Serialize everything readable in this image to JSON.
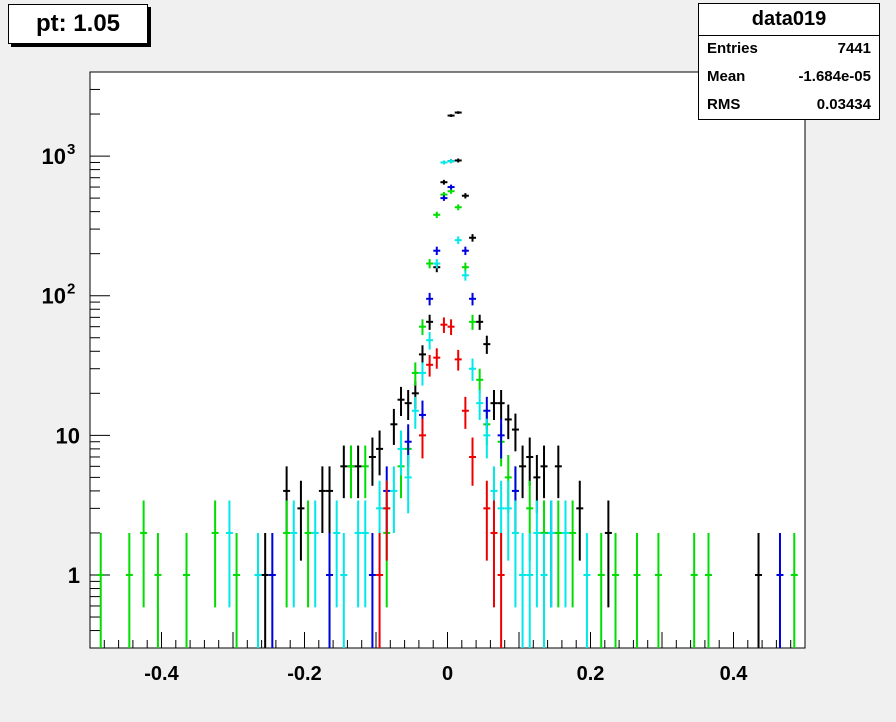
{
  "title": "pt: 1.05",
  "stats": {
    "name": "data019",
    "rows": [
      {
        "label": "Entries",
        "value": "7441"
      },
      {
        "label": "Mean",
        "value": "-1.684e-05"
      },
      {
        "label": "RMS",
        "value": "0.03434"
      }
    ]
  },
  "chart_data": {
    "type": "scatter",
    "y_scale": "log",
    "xlim": [
      -0.5,
      0.5
    ],
    "ylim": [
      0.3,
      4000
    ],
    "x_ticks": [
      {
        "value": -0.4,
        "label": "-0.4"
      },
      {
        "value": -0.2,
        "label": "-0.2"
      },
      {
        "value": 0,
        "label": "0"
      },
      {
        "value": 0.2,
        "label": "0.2"
      },
      {
        "value": 0.4,
        "label": "0.4"
      }
    ],
    "y_ticks": [
      {
        "value": 1,
        "label": "1"
      },
      {
        "value": 10,
        "label": "10"
      },
      {
        "value": 100,
        "label": "10",
        "exp": "2"
      },
      {
        "value": 1000,
        "label": "10",
        "exp": "3"
      }
    ],
    "series": [
      {
        "color": "#000000",
        "points": [
          [
            -0.255,
            1
          ],
          [
            -0.225,
            4
          ],
          [
            -0.205,
            3
          ],
          [
            -0.175,
            4
          ],
          [
            -0.165,
            4
          ],
          [
            -0.145,
            6
          ],
          [
            -0.135,
            6
          ],
          [
            -0.125,
            6
          ],
          [
            -0.105,
            7
          ],
          [
            -0.095,
            8
          ],
          [
            -0.075,
            12
          ],
          [
            -0.065,
            18
          ],
          [
            -0.055,
            17
          ],
          [
            -0.045,
            20
          ],
          [
            -0.035,
            38
          ],
          [
            -0.025,
            65
          ],
          [
            -0.015,
            160
          ],
          [
            -0.005,
            650
          ],
          [
            0.005,
            1950
          ],
          [
            0.005,
            920
          ],
          [
            0.015,
            2050
          ],
          [
            0.015,
            930
          ],
          [
            0.025,
            520
          ],
          [
            0.035,
            260
          ],
          [
            0.045,
            65
          ],
          [
            0.055,
            45
          ],
          [
            0.065,
            17
          ],
          [
            0.075,
            17
          ],
          [
            0.085,
            13
          ],
          [
            0.095,
            11
          ],
          [
            0.105,
            6
          ],
          [
            0.115,
            7
          ],
          [
            0.125,
            5
          ],
          [
            0.135,
            6
          ],
          [
            0.155,
            6
          ],
          [
            0.185,
            3
          ],
          [
            0.225,
            2
          ],
          [
            0.435,
            1
          ]
        ]
      },
      {
        "color": "#00dd00",
        "points": [
          [
            -0.485,
            1
          ],
          [
            -0.445,
            1
          ],
          [
            -0.425,
            2
          ],
          [
            -0.405,
            1
          ],
          [
            -0.365,
            1
          ],
          [
            -0.325,
            2
          ],
          [
            -0.295,
            1
          ],
          [
            -0.265,
            1
          ],
          [
            -0.225,
            2
          ],
          [
            -0.195,
            2
          ],
          [
            -0.165,
            1
          ],
          [
            -0.135,
            6
          ],
          [
            -0.115,
            6
          ],
          [
            -0.085,
            2
          ],
          [
            -0.065,
            6
          ],
          [
            -0.055,
            8
          ],
          [
            -0.045,
            28
          ],
          [
            -0.035,
            60
          ],
          [
            -0.025,
            170
          ],
          [
            -0.015,
            380
          ],
          [
            -0.005,
            530
          ],
          [
            0.005,
            560
          ],
          [
            0.015,
            430
          ],
          [
            0.025,
            160
          ],
          [
            0.035,
            65
          ],
          [
            0.045,
            25
          ],
          [
            0.055,
            12
          ],
          [
            0.075,
            9
          ],
          [
            0.085,
            5
          ],
          [
            0.095,
            4
          ],
          [
            0.115,
            3
          ],
          [
            0.135,
            2
          ],
          [
            0.155,
            2
          ],
          [
            0.175,
            2
          ],
          [
            0.215,
            1
          ],
          [
            0.235,
            1
          ],
          [
            0.265,
            1
          ],
          [
            0.295,
            1
          ],
          [
            0.345,
            1
          ],
          [
            0.365,
            1
          ],
          [
            0.485,
            1
          ]
        ]
      },
      {
        "color": "#0000dd",
        "points": [
          [
            -0.245,
            1
          ],
          [
            -0.165,
            1
          ],
          [
            -0.105,
            1
          ],
          [
            -0.085,
            4
          ],
          [
            -0.055,
            9
          ],
          [
            -0.035,
            14
          ],
          [
            -0.025,
            95
          ],
          [
            -0.015,
            210
          ],
          [
            -0.005,
            500
          ],
          [
            0.005,
            600
          ],
          [
            0.025,
            210
          ],
          [
            0.035,
            95
          ],
          [
            0.055,
            15
          ],
          [
            0.075,
            10
          ],
          [
            0.095,
            4
          ],
          [
            0.145,
            2
          ],
          [
            0.465,
            1
          ]
        ]
      },
      {
        "color": "#00e8e8",
        "points": [
          [
            -0.305,
            2
          ],
          [
            -0.265,
            1
          ],
          [
            -0.215,
            2
          ],
          [
            -0.185,
            2
          ],
          [
            -0.155,
            2
          ],
          [
            -0.145,
            1
          ],
          [
            -0.125,
            2
          ],
          [
            -0.115,
            2
          ],
          [
            -0.095,
            3
          ],
          [
            -0.085,
            3
          ],
          [
            -0.075,
            4
          ],
          [
            -0.065,
            8
          ],
          [
            -0.055,
            5
          ],
          [
            -0.045,
            15
          ],
          [
            -0.035,
            28
          ],
          [
            -0.025,
            48
          ],
          [
            -0.015,
            170
          ],
          [
            -0.005,
            900
          ],
          [
            0.005,
            920
          ],
          [
            0.015,
            250
          ],
          [
            0.025,
            140
          ],
          [
            0.035,
            30
          ],
          [
            0.045,
            17
          ],
          [
            0.055,
            10
          ],
          [
            0.065,
            4
          ],
          [
            0.075,
            3
          ],
          [
            0.085,
            3
          ],
          [
            0.095,
            2
          ],
          [
            0.105,
            1
          ],
          [
            0.115,
            1
          ],
          [
            0.125,
            2
          ],
          [
            0.135,
            1
          ],
          [
            0.145,
            2
          ],
          [
            0.165,
            2
          ],
          [
            0.195,
            1
          ]
        ]
      },
      {
        "color": "#ee0000",
        "points": [
          [
            -0.095,
            1
          ],
          [
            -0.085,
            3
          ],
          [
            -0.035,
            10
          ],
          [
            -0.025,
            32
          ],
          [
            -0.015,
            36
          ],
          [
            -0.005,
            62
          ],
          [
            0.005,
            60
          ],
          [
            0.015,
            35
          ],
          [
            0.025,
            15
          ],
          [
            0.035,
            7
          ],
          [
            0.055,
            3
          ],
          [
            0.065,
            2
          ],
          [
            0.075,
            1
          ]
        ]
      }
    ]
  }
}
